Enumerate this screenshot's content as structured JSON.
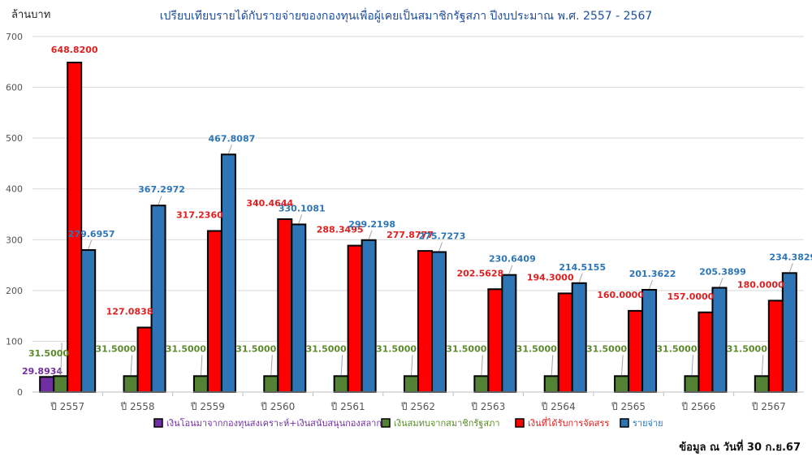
{
  "chart_data": {
    "type": "bar",
    "title": "เปรียบเทียบรายได้กับรายจ่ายของกองทุนเพื่อผู้เคยเป็นสมาชิกรัฐสภา ปีงบประมาณ พ.ศ. 2557 - 2567",
    "ylabel": "ล้านบาท",
    "xlabel": "",
    "ylim": [
      0,
      700
    ],
    "yticks": [
      0,
      100,
      200,
      300,
      400,
      500,
      600,
      700
    ],
    "grid": true,
    "legend_position": "bottom",
    "categories": [
      "ปี 2557",
      "ปี 2558",
      "ปี 2559",
      "ปี 2560",
      "ปี 2561",
      "ปี 2562",
      "ปี 2563",
      "ปี 2564",
      "ปี 2565",
      "ปี 2566",
      "ปี 2567"
    ],
    "series": [
      {
        "name": "เงินโอนมาจากกองทุนสงเคราะห์+เงินสนับสนุนกองสลาก",
        "color": "#7030a0",
        "label_color": "#7030a0",
        "values": [
          29.8934,
          null,
          null,
          null,
          null,
          null,
          null,
          null,
          null,
          null,
          null
        ],
        "labels": [
          "29.8934",
          "",
          "",
          "",
          "",
          "",
          "",
          "",
          "",
          "",
          ""
        ]
      },
      {
        "name": "เงินสมทบจากสมาชิกรัฐสภา",
        "color": "#548235",
        "label_color": "#5b8a2a",
        "values": [
          31.5,
          31.5,
          31.5,
          31.5,
          31.5,
          31.5,
          31.5,
          31.5,
          31.5,
          31.5,
          31.5
        ],
        "labels": [
          "31.5000",
          "31.5000",
          "31.5000",
          "31.5000",
          "31.5000",
          "31.5000",
          "31.5000",
          "31.5000",
          "31.5000",
          "31.5000",
          "31.5000"
        ]
      },
      {
        "name": "เงินที่ได้รับการจัดสรร",
        "color": "#ff0000",
        "label_color": "#e02020",
        "values": [
          648.82,
          127.0838,
          317.236,
          340.4644,
          288.3495,
          277.8777,
          202.5628,
          194.3,
          160.0,
          157.0,
          180.0
        ],
        "labels": [
          "648.8200",
          "127.0838",
          "317.2360",
          "340.4644",
          "288.3495",
          "277.8777",
          "202.5628",
          "194.3000",
          "160.0000",
          "157.0000",
          "180.0000"
        ]
      },
      {
        "name": "รายจ่าย",
        "color": "#2e75b6",
        "label_color": "#2e75b6",
        "values": [
          279.6957,
          367.2972,
          467.8087,
          330.1081,
          299.2198,
          275.7273,
          230.6409,
          214.5155,
          201.3622,
          205.3899,
          234.3829
        ],
        "labels": [
          "279.6957",
          "367.2972",
          "467.8087",
          "330.1081",
          "299.2198",
          "275.7273",
          "230.6409",
          "214.5155",
          "201.3622",
          "205.3899",
          "234.3829"
        ]
      }
    ]
  },
  "source_note": "ข้อมูล ณ วันที่ 30 ก.ย.67"
}
